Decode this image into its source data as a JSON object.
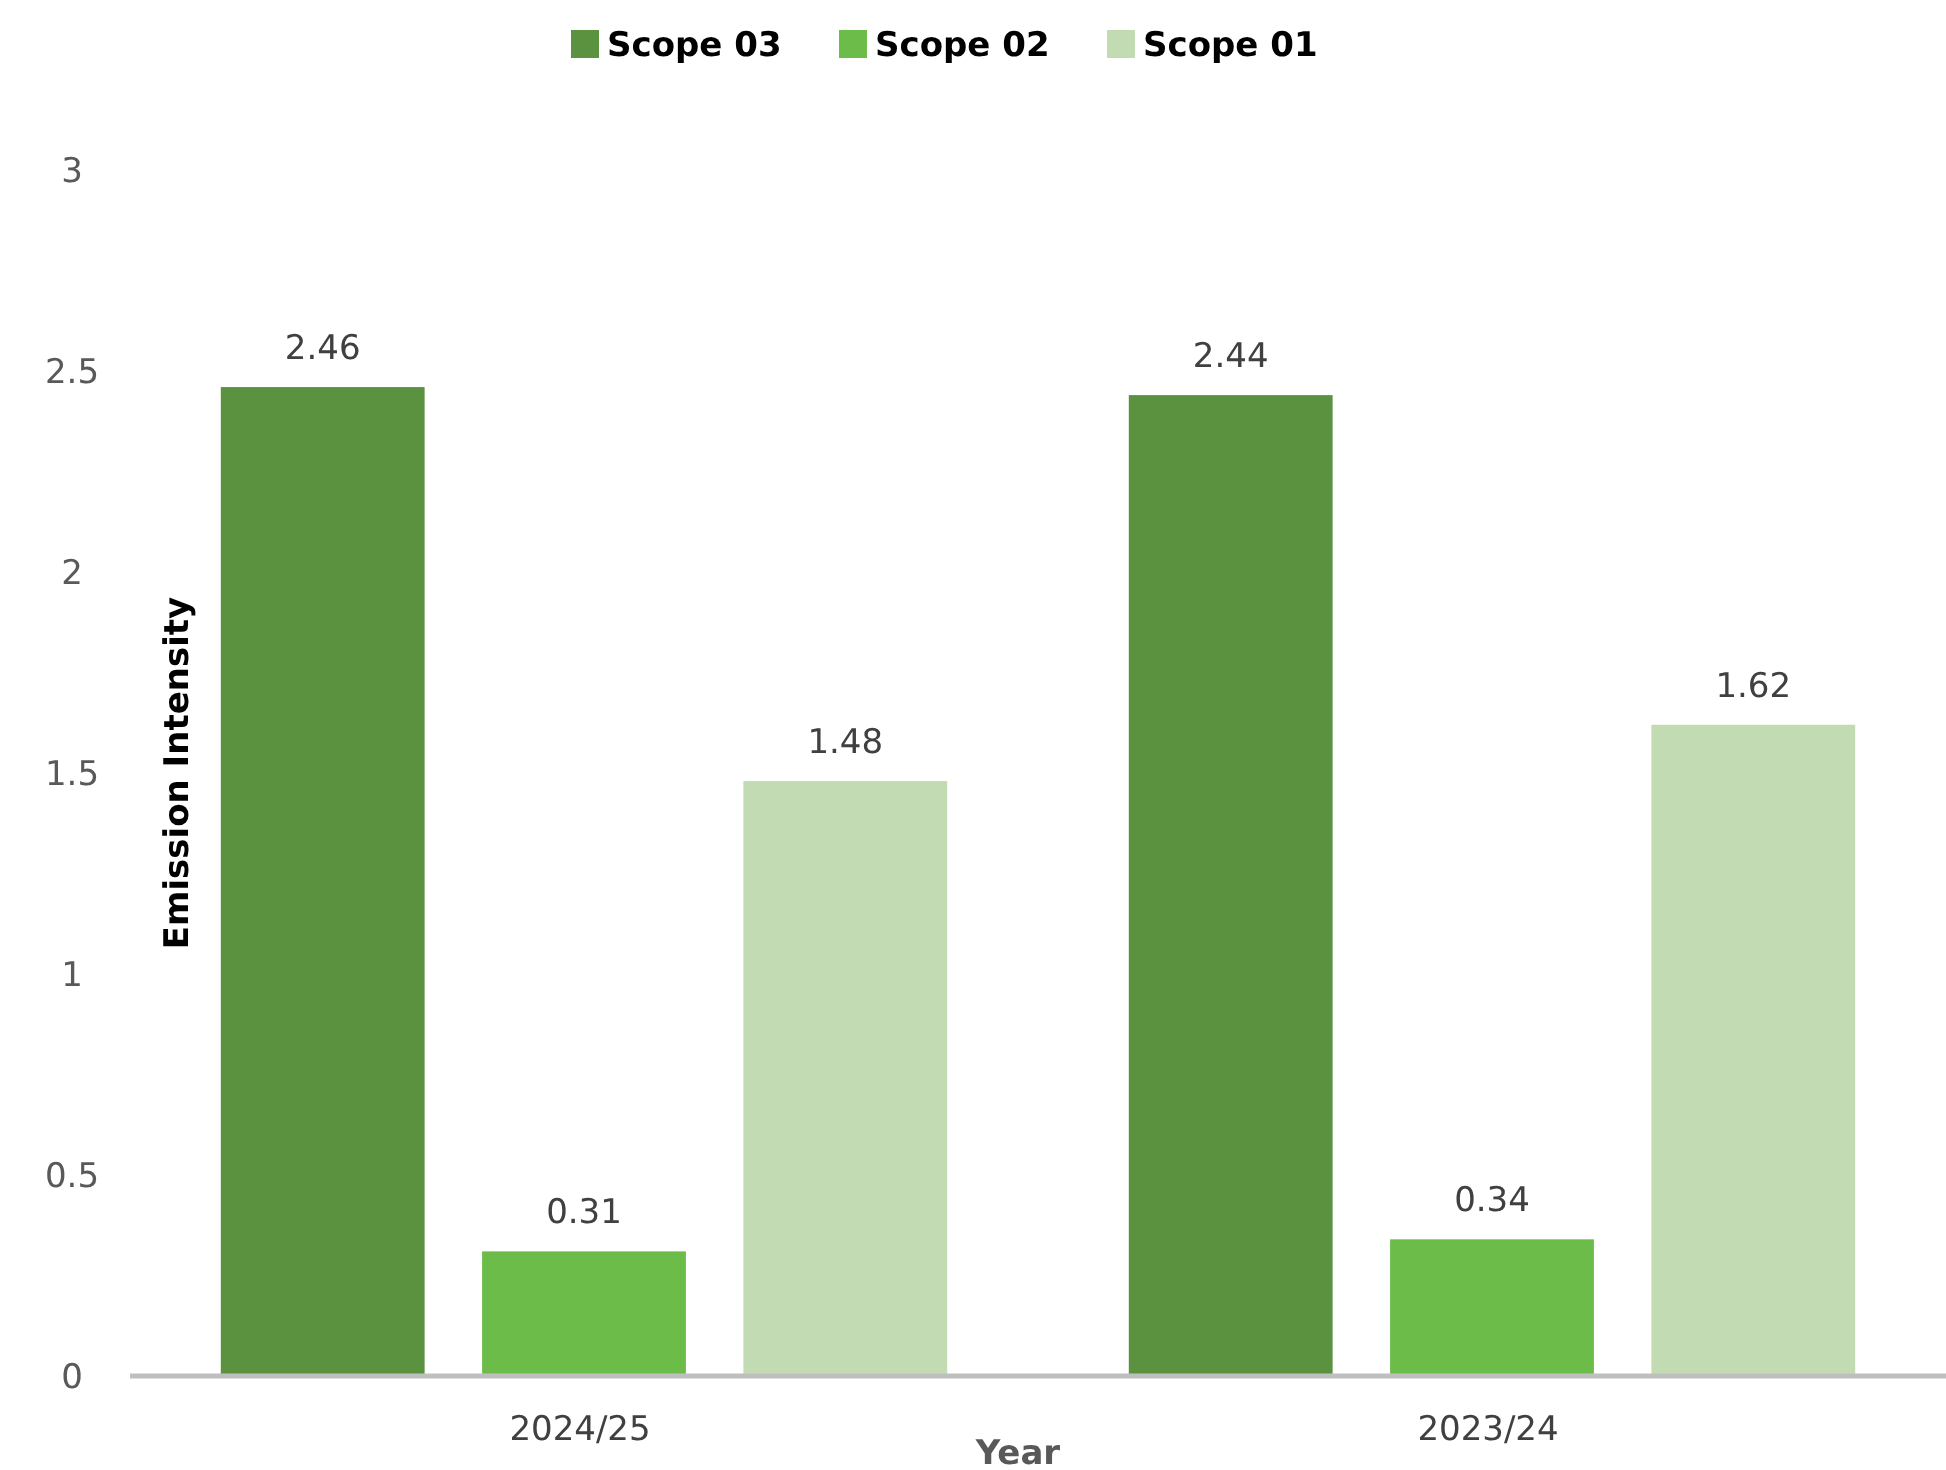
{
  "chart_data": {
    "type": "bar",
    "xlabel": "Year",
    "ylabel": "Emission Intensity",
    "categories": [
      "2024/25",
      "2023/24"
    ],
    "series": [
      {
        "name": "Scope 03",
        "color": "#5b9240",
        "values": [
          2.46,
          2.44
        ]
      },
      {
        "name": "Scope 02",
        "color": "#6cbc4a",
        "values": [
          0.31,
          0.34
        ]
      },
      {
        "name": "Scope 01",
        "color": "#c3dbb3",
        "values": [
          1.48,
          1.62
        ]
      }
    ],
    "ylim": [
      0,
      3
    ],
    "yticks": [
      0,
      0.5,
      1,
      1.5,
      2,
      2.5,
      3
    ],
    "data_labels": true,
    "grid": false,
    "legend": "top"
  }
}
